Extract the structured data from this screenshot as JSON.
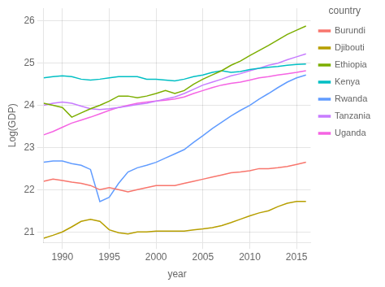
{
  "chart_data": {
    "type": "line",
    "xlabel": "year",
    "ylabel": "Log(GDP)",
    "legend_title": "country",
    "legend": "right",
    "grid": true,
    "xlim": [
      1988,
      2016.5
    ],
    "ylim": [
      20.75,
      26.3
    ],
    "xticks": [
      1990,
      1995,
      2000,
      2005,
      2010,
      2015
    ],
    "yticks": [
      21,
      22,
      23,
      24,
      25,
      26
    ],
    "x": [
      1988,
      1989,
      1990,
      1991,
      1992,
      1993,
      1994,
      1995,
      1996,
      1997,
      1998,
      1999,
      2000,
      2001,
      2002,
      2003,
      2004,
      2005,
      2006,
      2007,
      2008,
      2009,
      2010,
      2011,
      2012,
      2013,
      2014,
      2015,
      2016
    ],
    "series": [
      {
        "name": "Burundi",
        "color": "#F8766D",
        "values": [
          22.2,
          22.25,
          22.22,
          22.18,
          22.15,
          22.1,
          22.0,
          22.05,
          22.0,
          21.95,
          22.0,
          22.05,
          22.1,
          22.1,
          22.1,
          22.15,
          22.2,
          22.25,
          22.3,
          22.35,
          22.4,
          22.42,
          22.45,
          22.5,
          22.5,
          22.52,
          22.55,
          22.6,
          22.65
        ]
      },
      {
        "name": "Djibouti",
        "color": "#B79F00",
        "values": [
          20.85,
          20.92,
          21.0,
          21.12,
          21.25,
          21.3,
          21.25,
          21.05,
          20.98,
          20.95,
          21.0,
          21.0,
          21.02,
          21.02,
          21.02,
          21.02,
          21.05,
          21.07,
          21.1,
          21.15,
          21.22,
          21.3,
          21.38,
          21.45,
          21.5,
          21.6,
          21.68,
          21.72,
          21.72
        ]
      },
      {
        "name": "Ethiopia",
        "color": "#7CAE00",
        "values": [
          24.05,
          24.0,
          23.95,
          23.72,
          23.82,
          23.92,
          24.0,
          24.1,
          24.22,
          24.22,
          24.18,
          24.22,
          24.28,
          24.35,
          24.28,
          24.35,
          24.5,
          24.62,
          24.72,
          24.82,
          24.95,
          25.05,
          25.18,
          25.3,
          25.42,
          25.55,
          25.68,
          25.78,
          25.88
        ]
      },
      {
        "name": "Kenya",
        "color": "#00BFC4",
        "values": [
          24.65,
          24.68,
          24.7,
          24.68,
          24.62,
          24.6,
          24.62,
          24.65,
          24.68,
          24.68,
          24.68,
          24.62,
          24.62,
          24.6,
          24.58,
          24.62,
          24.68,
          24.72,
          24.78,
          24.82,
          24.78,
          24.8,
          24.85,
          24.88,
          24.9,
          24.92,
          24.95,
          24.97,
          24.98
        ]
      },
      {
        "name": "Rwanda",
        "color": "#619CFF",
        "values": [
          22.65,
          22.68,
          22.68,
          22.62,
          22.58,
          22.48,
          21.72,
          21.82,
          22.15,
          22.42,
          22.52,
          22.58,
          22.65,
          22.75,
          22.85,
          22.95,
          23.12,
          23.28,
          23.45,
          23.6,
          23.75,
          23.88,
          24.0,
          24.15,
          24.28,
          24.42,
          24.55,
          24.65,
          24.72
        ]
      },
      {
        "name": "Tanzania",
        "color": "#C77CFF",
        "values": [
          24.0,
          24.05,
          24.08,
          24.05,
          23.98,
          23.92,
          23.9,
          23.92,
          23.95,
          23.98,
          24.02,
          24.05,
          24.1,
          24.15,
          24.2,
          24.28,
          24.38,
          24.48,
          24.55,
          24.62,
          24.7,
          24.75,
          24.82,
          24.88,
          24.95,
          25.0,
          25.08,
          25.15,
          25.22
        ]
      },
      {
        "name": "Uganda",
        "color": "#F564E3",
        "values": [
          23.3,
          23.38,
          23.48,
          23.58,
          23.65,
          23.72,
          23.8,
          23.88,
          23.95,
          24.0,
          24.05,
          24.08,
          24.1,
          24.12,
          24.15,
          24.2,
          24.28,
          24.35,
          24.42,
          24.48,
          24.52,
          24.55,
          24.6,
          24.65,
          24.68,
          24.72,
          24.75,
          24.78,
          24.82
        ]
      }
    ]
  }
}
